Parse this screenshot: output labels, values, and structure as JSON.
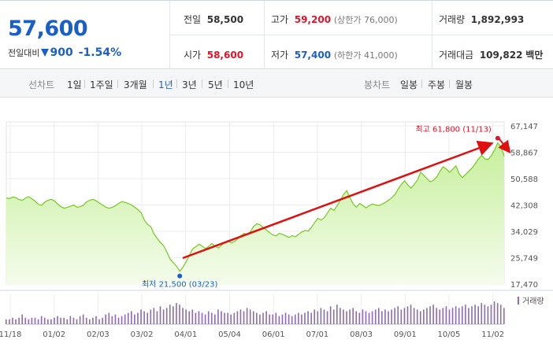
{
  "quote": {
    "price": "57,600",
    "change_label": "전일대비",
    "change_amount": "900",
    "change_pct": "-1.54%",
    "prev_close_label": "전일",
    "prev_close": "58,500",
    "high_label": "고가",
    "high": "59,200",
    "upper_limit_label": "(상한가 76,000)",
    "volume_label": "거래량",
    "volume": "1,892,993",
    "open_label": "시가",
    "open": "58,600",
    "low_label": "저가",
    "low": "57,400",
    "lower_limit_label": "(하한가 41,000)",
    "amount_label": "거래대금",
    "amount": "109,822",
    "amount_unit": "백만"
  },
  "toolbar": {
    "line_label": "선차트",
    "periods": [
      "1일",
      "1주일",
      "3개월",
      "1년",
      "3년",
      "5년",
      "10년"
    ],
    "active_period": "1년",
    "candle_label": "봉차트",
    "candles": [
      "일봉",
      "주봉",
      "월봉"
    ]
  },
  "colors": {
    "up": "#e0142b",
    "down": "#1a5fc8",
    "line": "#77c81f",
    "fill_top": "#c7ef9c",
    "volume": "#8c6bb1",
    "arrow": "#e01010"
  },
  "chart_data": {
    "type": "area",
    "x_tick_labels": [
      "11/18",
      "01/02",
      "02/03",
      "03/02",
      "04/01",
      "05/04",
      "06/01",
      "07/01",
      "08/03",
      "09/01",
      "10/05",
      "11/02"
    ],
    "y_ticks": [
      17470,
      25749,
      34029,
      42308,
      50588,
      58867,
      67147
    ],
    "ylim": [
      17470,
      67147
    ],
    "grid": true,
    "series": [
      {
        "values": [
          44500,
          44300,
          44800,
          44600,
          44000,
          43800,
          44500,
          44900,
          44200,
          43500,
          42500,
          42200,
          43200,
          43800,
          44100,
          43600,
          42600,
          41800,
          41300,
          41600,
          41900,
          42300,
          41600,
          41800,
          42200,
          43300,
          43800,
          44100,
          43600,
          42900,
          42300,
          41600,
          41300,
          41600,
          42100,
          42800,
          43400,
          43100,
          42800,
          42300,
          41600,
          40800,
          39800,
          37500,
          36200,
          35500,
          33200,
          31800,
          30500,
          29500,
          27500,
          25300,
          24200,
          23100,
          21500,
          22800,
          24500,
          26500,
          28500,
          29200,
          30000,
          29400,
          28600,
          29300,
          30200,
          29400,
          28800,
          29600,
          30600,
          31100,
          30400,
          30800,
          31600,
          32600,
          33400,
          33100,
          33900,
          35600,
          36400,
          36100,
          35300,
          34400,
          33600,
          32900,
          32600,
          33400,
          33100,
          32600,
          32100,
          32700,
          32300,
          33100,
          33800,
          34300,
          34100,
          35300,
          36800,
          38100,
          37600,
          38300,
          39800,
          41300,
          40600,
          42100,
          43800,
          45600,
          46800,
          44600,
          42600,
          41600,
          42800,
          42100,
          41400,
          42100,
          42600,
          42300,
          42100,
          42600,
          43100,
          43800,
          44600,
          45600,
          47300,
          48800,
          49900,
          48600,
          47600,
          48800,
          50100,
          52600,
          51600,
          50600,
          49600,
          50100,
          51100,
          52900,
          54300,
          53600,
          52600,
          53600,
          54600,
          52100,
          50900,
          51900,
          52900,
          53900,
          55300,
          56800,
          57900,
          56800,
          56600,
          57800,
          59600,
          61800,
          60600,
          57600
        ],
        "volumes": [
          3,
          3,
          4,
          3,
          4,
          6,
          4,
          3,
          4,
          4,
          3,
          5,
          4,
          3,
          3,
          4,
          5,
          4,
          4,
          3,
          5,
          4,
          3,
          5,
          6,
          4,
          3,
          4,
          5,
          3,
          4,
          6,
          7,
          5,
          6,
          4,
          5,
          6,
          7,
          8,
          6,
          7,
          9,
          8,
          7,
          9,
          10,
          8,
          11,
          9,
          10,
          12,
          11,
          13,
          12,
          10,
          9,
          8,
          9,
          7,
          8,
          7,
          6,
          8,
          7,
          6,
          9,
          8,
          7,
          7,
          6,
          7,
          8,
          9,
          8,
          10,
          9,
          8,
          7,
          6,
          7,
          8,
          6,
          6,
          7,
          5,
          6,
          7,
          6,
          5,
          6,
          7,
          6,
          7,
          8,
          7,
          9,
          8,
          10,
          9,
          8,
          11,
          9,
          12,
          10,
          9,
          8,
          9,
          10,
          8,
          7,
          9,
          8,
          7,
          8,
          9,
          10,
          8,
          9,
          8,
          9,
          10,
          11,
          9,
          10,
          11,
          12,
          10,
          9,
          8,
          9,
          10,
          11,
          12,
          10,
          9,
          10,
          11,
          9,
          10,
          11,
          10,
          11,
          12,
          10,
          11,
          12,
          11,
          13,
          12,
          11,
          12,
          14,
          13,
          12,
          10
        ]
      }
    ],
    "annotations": {
      "high_label": "최고 61,800 (11/13)",
      "high_index": 153,
      "low_label": "최저 21,500 (03/23)",
      "low_index": 54,
      "volume_legend": "거래량"
    }
  }
}
